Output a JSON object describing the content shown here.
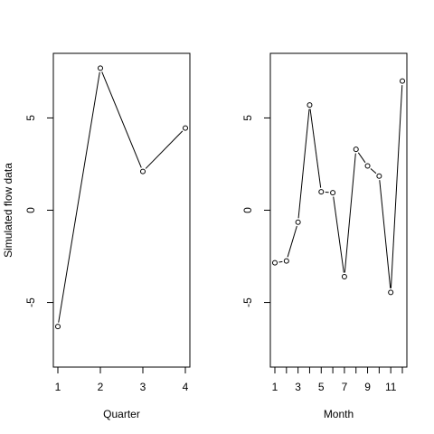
{
  "chart_data": [
    {
      "type": "line",
      "xlabel": "Quarter",
      "ylabel": "Simulated flow data",
      "x": [
        1,
        2,
        3,
        4
      ],
      "y": [
        -6.3,
        7.7,
        2.1,
        4.45
      ],
      "xlim": [
        1,
        4
      ],
      "ylim": [
        -8.5,
        8.5
      ],
      "xticks": [
        1,
        2,
        3,
        4
      ],
      "xtick_labels": [
        "1",
        "2",
        "3",
        "4"
      ],
      "yticks": [
        -5,
        0,
        5
      ],
      "ytick_labels": [
        "-5",
        "0",
        "5"
      ],
      "grid": false,
      "markers": "open-circle"
    },
    {
      "type": "line",
      "xlabel": "Month",
      "ylabel": "",
      "x": [
        1,
        2,
        3,
        4,
        5,
        6,
        7,
        8,
        9,
        10,
        11,
        12
      ],
      "y": [
        -2.85,
        -2.75,
        -0.65,
        5.7,
        1.0,
        0.95,
        -3.6,
        3.3,
        2.4,
        1.85,
        -4.45,
        7.0
      ],
      "xlim": [
        1,
        12
      ],
      "ylim": [
        -8.5,
        8.5
      ],
      "xticks": [
        1,
        2,
        3,
        4,
        5,
        6,
        7,
        8,
        9,
        10,
        11,
        12
      ],
      "xtick_labels": [
        "1",
        "",
        "3",
        "",
        "5",
        "",
        "7",
        "",
        "9",
        "",
        "11",
        ""
      ],
      "yticks": [
        -5,
        0,
        5
      ],
      "ytick_labels": [
        "-5",
        "0",
        "5"
      ],
      "grid": false,
      "markers": "open-circle"
    }
  ]
}
